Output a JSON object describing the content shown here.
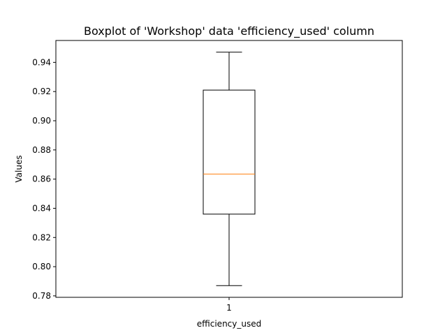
{
  "chart_data": {
    "type": "boxplot",
    "title": "Boxplot of 'Workshop' data 'efficiency_used' column",
    "xlabel": "efficiency_used",
    "ylabel": "Values",
    "categories": [
      "1"
    ],
    "ylim": [
      0.779,
      0.955
    ],
    "yticks": [
      0.78,
      0.8,
      0.82,
      0.84,
      0.86,
      0.88,
      0.9,
      0.92,
      0.94
    ],
    "ytick_labels": [
      "0.78",
      "0.80",
      "0.82",
      "0.84",
      "0.86",
      "0.88",
      "0.90",
      "0.92",
      "0.94"
    ],
    "boxes": [
      {
        "label": "1",
        "whisker_low": 0.787,
        "q1": 0.836,
        "median": 0.8635,
        "q3": 0.921,
        "whisker_high": 0.947
      }
    ],
    "grid": false,
    "colors": {
      "box": "#000000",
      "median": "#ff7f0e"
    }
  }
}
